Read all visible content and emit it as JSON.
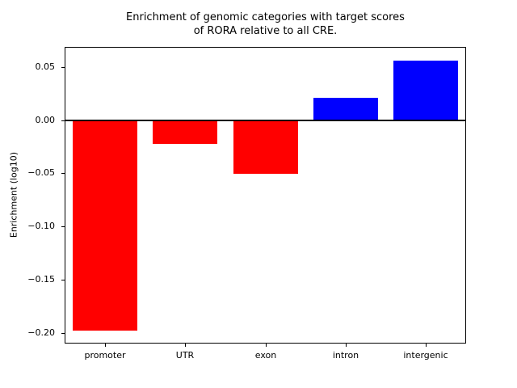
{
  "figure": {
    "background": "#ffffff"
  },
  "chart_data": {
    "type": "bar",
    "title": "Enrichment of genomic categories with target scores of RORA relative to all CRE.",
    "title_lines": [
      "Enrichment of genomic categories with target scores",
      "of RORA relative to all CRE."
    ],
    "xlabel": "",
    "ylabel": "Enrichment (log10)",
    "categories": [
      "promoter",
      "UTR",
      "exon",
      "intron",
      "intergenic"
    ],
    "values": [
      -0.197,
      -0.022,
      -0.05,
      0.021,
      0.056
    ],
    "bar_colors": [
      "#ff0000",
      "#ff0000",
      "#ff0000",
      "#0000ff",
      "#0000ff"
    ],
    "color_negative": "#ff0000",
    "color_positive": "#0000ff",
    "ylim": [
      -0.2097,
      0.0687
    ],
    "yticks": [
      0.05,
      0.0,
      -0.05,
      -0.1,
      -0.15,
      -0.2
    ],
    "ytick_labels": [
      "0.05",
      "0.00",
      "−0.05",
      "−0.10",
      "−0.15",
      "−0.20"
    ],
    "bar_width_fraction": 0.8,
    "grid": false,
    "legend": false,
    "zero_line": true
  }
}
